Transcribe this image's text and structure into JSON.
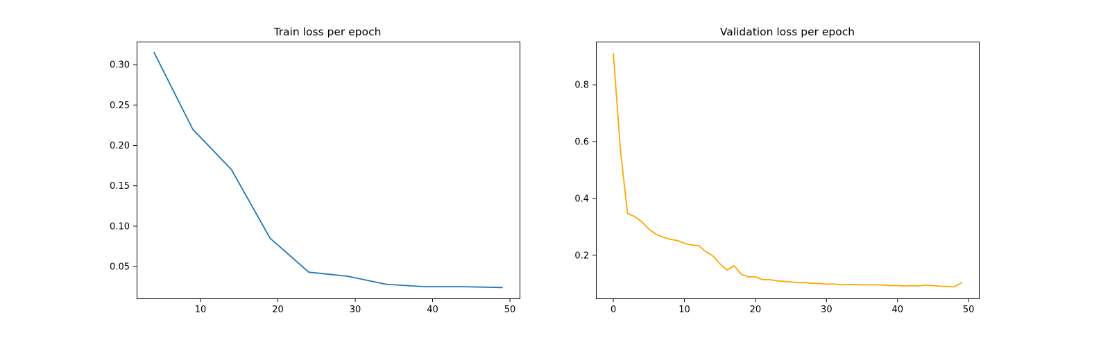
{
  "chart_data": [
    {
      "type": "line",
      "title": "Train loss per epoch",
      "xlabel": "",
      "ylabel": "",
      "xlim": [
        1.75,
        51.25
      ],
      "ylim": [
        0.0105,
        0.3285
      ],
      "xticks": [
        10,
        20,
        30,
        40,
        50
      ],
      "yticks": [
        0.05,
        0.1,
        0.15,
        0.2,
        0.25,
        0.3
      ],
      "xtick_labels": [
        "10",
        "20",
        "30",
        "40",
        "50"
      ],
      "ytick_labels": [
        "0.05",
        "0.10",
        "0.15",
        "0.20",
        "0.25",
        "0.30"
      ],
      "grid": false,
      "color": "#1f77b4",
      "series": [
        {
          "x": [
            4,
            9,
            14,
            19,
            24,
            29,
            34,
            39,
            44,
            49
          ],
          "y": [
            0.315,
            0.22,
            0.17,
            0.085,
            0.043,
            0.038,
            0.028,
            0.025,
            0.025,
            0.024
          ]
        }
      ]
    },
    {
      "type": "line",
      "title": "Validation loss per epoch",
      "xlabel": "",
      "ylabel": "",
      "xlim": [
        -2.45,
        51.45
      ],
      "ylim": [
        0.048,
        0.952
      ],
      "xticks": [
        0,
        10,
        20,
        30,
        40,
        50
      ],
      "yticks": [
        0.2,
        0.4,
        0.6,
        0.8
      ],
      "xtick_labels": [
        "0",
        "10",
        "20",
        "30",
        "40",
        "50"
      ],
      "ytick_labels": [
        "0.2",
        "0.4",
        "0.6",
        "0.8"
      ],
      "grid": false,
      "color": "#ffa500",
      "series": [
        {
          "x": [
            0,
            1,
            2,
            3,
            4,
            5,
            6,
            7,
            8,
            9,
            10,
            11,
            12,
            13,
            14,
            15,
            16,
            17,
            18,
            19,
            20,
            21,
            22,
            23,
            24,
            25,
            26,
            27,
            28,
            29,
            30,
            31,
            32,
            33,
            34,
            35,
            36,
            37,
            38,
            39,
            40,
            41,
            42,
            43,
            44,
            45,
            46,
            47,
            48,
            49
          ],
          "y": [
            0.91,
            0.57,
            0.347,
            0.336,
            0.318,
            0.292,
            0.274,
            0.264,
            0.256,
            0.252,
            0.242,
            0.236,
            0.234,
            0.213,
            0.198,
            0.17,
            0.148,
            0.163,
            0.133,
            0.124,
            0.124,
            0.114,
            0.114,
            0.11,
            0.108,
            0.106,
            0.103,
            0.104,
            0.101,
            0.101,
            0.098,
            0.099,
            0.096,
            0.097,
            0.097,
            0.096,
            0.096,
            0.096,
            0.095,
            0.093,
            0.093,
            0.092,
            0.093,
            0.092,
            0.095,
            0.093,
            0.091,
            0.09,
            0.089,
            0.103
          ]
        }
      ]
    }
  ]
}
